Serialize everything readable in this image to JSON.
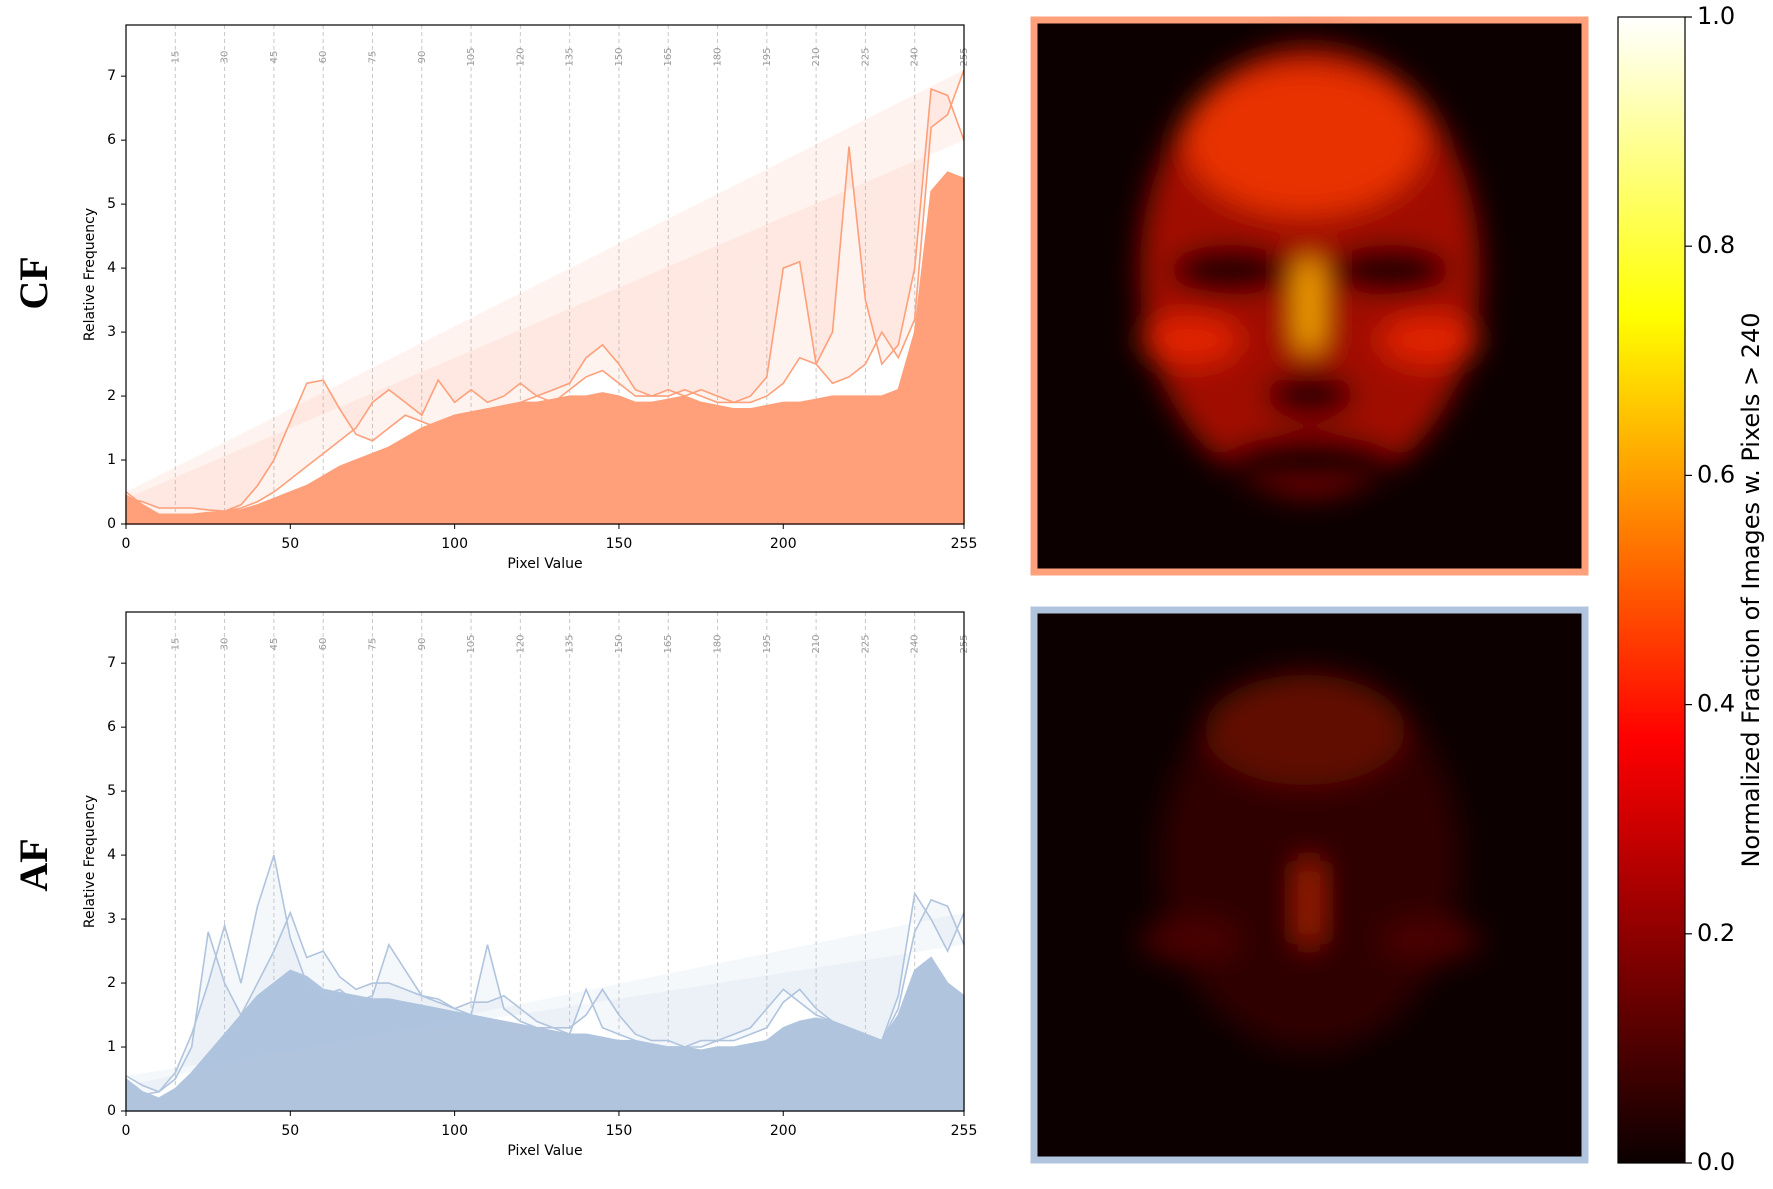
{
  "chart_data": [
    {
      "type": "line",
      "panel_label": "CF",
      "xlabel": "Pixel Value",
      "ylabel": "Relative Frequency",
      "x": [
        0,
        5,
        10,
        15,
        20,
        25,
        30,
        35,
        40,
        45,
        50,
        55,
        60,
        65,
        70,
        75,
        80,
        85,
        90,
        95,
        100,
        105,
        110,
        115,
        120,
        125,
        130,
        135,
        140,
        145,
        150,
        155,
        160,
        165,
        170,
        175,
        180,
        185,
        190,
        195,
        200,
        205,
        210,
        215,
        220,
        225,
        230,
        235,
        240,
        245,
        250,
        255
      ],
      "xlim": [
        0,
        255
      ],
      "ylim": [
        0,
        7.8
      ],
      "xticks": [
        0,
        50,
        100,
        150,
        200,
        255
      ],
      "yticks": [
        0,
        1,
        2,
        3,
        4,
        5,
        6,
        7
      ],
      "vlines": [
        15,
        30,
        45,
        60,
        75,
        90,
        105,
        120,
        135,
        150,
        165,
        180,
        195,
        210,
        225,
        240,
        255
      ],
      "series": [
        {
          "color": "#ffa07a",
          "area": true,
          "values": [
            0.45,
            0.3,
            0.15,
            0.15,
            0.15,
            0.18,
            0.2,
            0.22,
            0.3,
            0.4,
            0.5,
            0.6,
            0.75,
            0.9,
            1.0,
            1.1,
            1.2,
            1.35,
            1.5,
            1.6,
            1.7,
            1.75,
            1.8,
            1.85,
            1.9,
            1.9,
            1.95,
            2.0,
            2.0,
            2.05,
            2.0,
            1.9,
            1.9,
            1.95,
            2.0,
            1.9,
            1.85,
            1.8,
            1.8,
            1.85,
            1.9,
            1.9,
            1.95,
            2.0,
            2.0,
            2.0,
            2.0,
            2.1,
            3.0,
            5.2,
            5.5,
            5.4
          ]
        },
        {
          "color": "#ffa07a",
          "area": false,
          "values": [
            0.4,
            0.35,
            0.25,
            0.25,
            0.25,
            0.22,
            0.2,
            0.3,
            0.6,
            1.0,
            1.6,
            2.2,
            2.25,
            1.8,
            1.4,
            1.3,
            1.5,
            1.7,
            1.6,
            1.5,
            1.6,
            1.7,
            1.8,
            1.8,
            1.9,
            2.0,
            2.1,
            2.2,
            2.6,
            2.8,
            2.5,
            2.1,
            2.0,
            2.0,
            2.1,
            2.0,
            1.9,
            1.9,
            1.9,
            2.0,
            2.2,
            2.6,
            2.5,
            3.0,
            5.9,
            3.5,
            2.5,
            2.8,
            4.0,
            6.8,
            6.7,
            6.0
          ]
        },
        {
          "color": "#ffa07a",
          "area": false,
          "values": [
            0.5,
            0.3,
            0.15,
            0.15,
            0.15,
            0.17,
            0.2,
            0.25,
            0.35,
            0.5,
            0.7,
            0.9,
            1.1,
            1.3,
            1.5,
            1.9,
            2.1,
            1.9,
            1.7,
            2.25,
            1.9,
            2.1,
            1.9,
            2.0,
            2.2,
            2.0,
            1.9,
            2.1,
            2.3,
            2.4,
            2.2,
            2.0,
            2.0,
            2.1,
            2.0,
            2.1,
            2.0,
            1.9,
            2.0,
            2.3,
            4.0,
            4.1,
            2.5,
            2.2,
            2.3,
            2.5,
            3.0,
            2.6,
            3.2,
            6.2,
            6.4,
            7.1
          ]
        }
      ]
    },
    {
      "type": "line",
      "panel_label": "AF",
      "xlabel": "Pixel Value",
      "ylabel": "Relative Frequency",
      "x": [
        0,
        5,
        10,
        15,
        20,
        25,
        30,
        35,
        40,
        45,
        50,
        55,
        60,
        65,
        70,
        75,
        80,
        85,
        90,
        95,
        100,
        105,
        110,
        115,
        120,
        125,
        130,
        135,
        140,
        145,
        150,
        155,
        160,
        165,
        170,
        175,
        180,
        185,
        190,
        195,
        200,
        205,
        210,
        215,
        220,
        225,
        230,
        235,
        240,
        245,
        250,
        255
      ],
      "xlim": [
        0,
        255
      ],
      "ylim": [
        0,
        7.8
      ],
      "xticks": [
        0,
        50,
        100,
        150,
        200,
        255
      ],
      "yticks": [
        0,
        1,
        2,
        3,
        4,
        5,
        6,
        7
      ],
      "vlines": [
        15,
        30,
        45,
        60,
        75,
        90,
        105,
        120,
        135,
        150,
        165,
        180,
        195,
        210,
        225,
        240,
        255
      ],
      "series": [
        {
          "color": "#b0c4de",
          "area": true,
          "values": [
            0.5,
            0.3,
            0.2,
            0.35,
            0.6,
            0.9,
            1.2,
            1.5,
            1.8,
            2.0,
            2.2,
            2.1,
            1.9,
            1.85,
            1.8,
            1.75,
            1.75,
            1.7,
            1.65,
            1.6,
            1.55,
            1.5,
            1.45,
            1.4,
            1.35,
            1.3,
            1.25,
            1.2,
            1.2,
            1.15,
            1.1,
            1.1,
            1.05,
            1.0,
            1.0,
            0.95,
            1.0,
            1.0,
            1.05,
            1.1,
            1.3,
            1.4,
            1.45,
            1.4,
            1.3,
            1.2,
            1.1,
            1.5,
            2.2,
            2.4,
            2.0,
            1.8
          ]
        },
        {
          "color": "#b0c4de",
          "area": false,
          "values": [
            0.4,
            0.25,
            0.3,
            0.6,
            1.2,
            2.0,
            2.9,
            2.0,
            3.2,
            4.0,
            2.7,
            2.0,
            1.8,
            1.9,
            1.7,
            1.8,
            2.6,
            2.2,
            1.8,
            1.7,
            1.6,
            1.5,
            2.6,
            1.6,
            1.4,
            1.3,
            1.3,
            1.2,
            1.9,
            1.3,
            1.2,
            1.1,
            1.0,
            1.0,
            1.0,
            1.0,
            1.1,
            1.1,
            1.2,
            1.3,
            1.7,
            1.9,
            1.6,
            1.4,
            1.3,
            1.2,
            1.1,
            1.8,
            3.4,
            3.0,
            2.5,
            3.1
          ]
        },
        {
          "color": "#b0c4de",
          "area": false,
          "values": [
            0.55,
            0.4,
            0.3,
            0.5,
            1.0,
            2.8,
            2.0,
            1.5,
            2.0,
            2.5,
            3.1,
            2.4,
            2.5,
            2.1,
            1.9,
            2.0,
            2.0,
            1.9,
            1.8,
            1.75,
            1.6,
            1.7,
            1.7,
            1.8,
            1.6,
            1.4,
            1.3,
            1.3,
            1.5,
            1.9,
            1.5,
            1.2,
            1.1,
            1.1,
            1.0,
            1.1,
            1.1,
            1.2,
            1.3,
            1.6,
            1.9,
            1.7,
            1.5,
            1.4,
            1.3,
            1.2,
            1.1,
            1.6,
            2.8,
            3.3,
            3.2,
            2.6
          ]
        }
      ]
    },
    {
      "type": "colorbar",
      "label": "Normalized Fraction of Images w. Pixels > 240",
      "ylim": [
        0,
        1
      ],
      "yticks": [
        {
          "value": 0,
          "label": "0.0"
        },
        {
          "value": 0.2,
          "label": "0.2"
        },
        {
          "value": 0.4,
          "label": "0.4"
        },
        {
          "value": 0.6,
          "label": "0.6"
        },
        {
          "value": 0.8,
          "label": "0.8"
        },
        {
          "value": 1,
          "label": "1.0"
        }
      ]
    }
  ]
}
